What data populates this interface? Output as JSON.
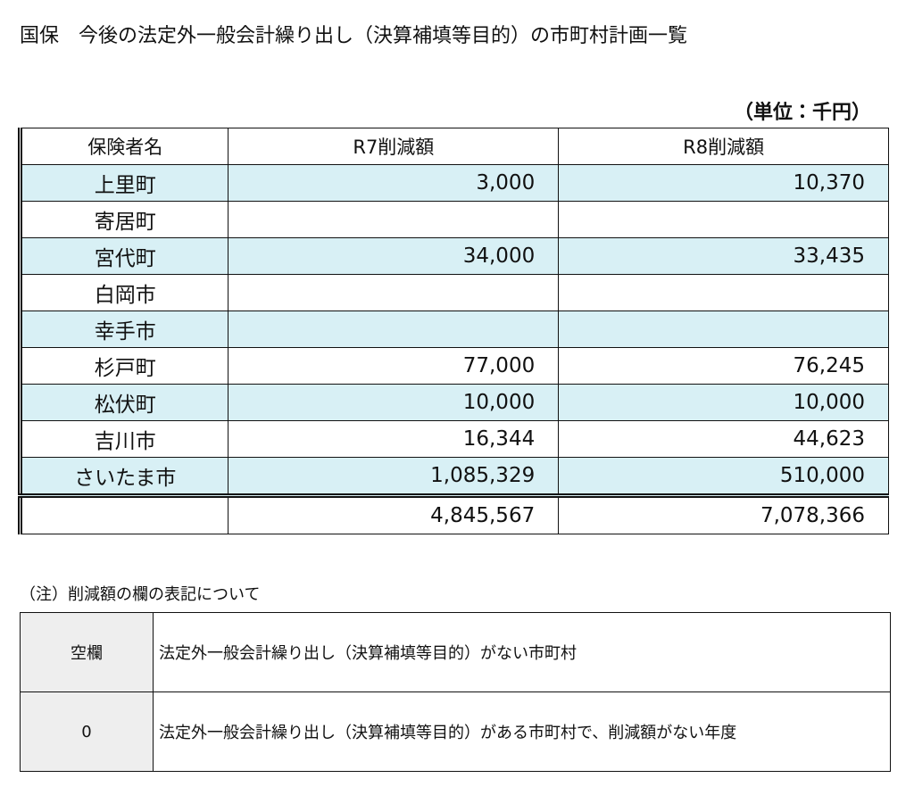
{
  "header": {
    "title": "国保　今後の法定外一般会計繰り出し（決算補填等目的）の市町村計画一覧",
    "unit": "（単位：千円）"
  },
  "table": {
    "columns": [
      "保険者名",
      "R7削減額",
      "R8削減額"
    ],
    "rows": [
      {
        "name": "上里町",
        "r7": "3,000",
        "r8": "10,370"
      },
      {
        "name": "寄居町"
      },
      {
        "name": "宮代町",
        "r7": "34,000",
        "r8": "33,435"
      },
      {
        "name": "白岡市"
      },
      {
        "name": "幸手市"
      },
      {
        "name": "杉戸町",
        "r7": "77,000",
        "r8": "76,245"
      },
      {
        "name": "松伏町",
        "r7": "10,000",
        "r8": "10,000"
      },
      {
        "name": "吉川市",
        "r7": "16,344",
        "r8": "44,623"
      },
      {
        "name": "さいたま市",
        "r7": "1,085,329",
        "r8": "510,000"
      }
    ],
    "total": {
      "r7": "4,845,567",
      "r8": "7,078,366"
    }
  },
  "note": {
    "title": "（注）削減額の欄の表記について",
    "rows": [
      {
        "term": "空欄",
        "description": "法定外一般会計繰り出し（決算補填等目的）がない市町村"
      },
      {
        "term": "0",
        "description": "法定外一般会計繰り出し（決算補填等目的）がある市町村で、削減額がない年度"
      }
    ]
  }
}
